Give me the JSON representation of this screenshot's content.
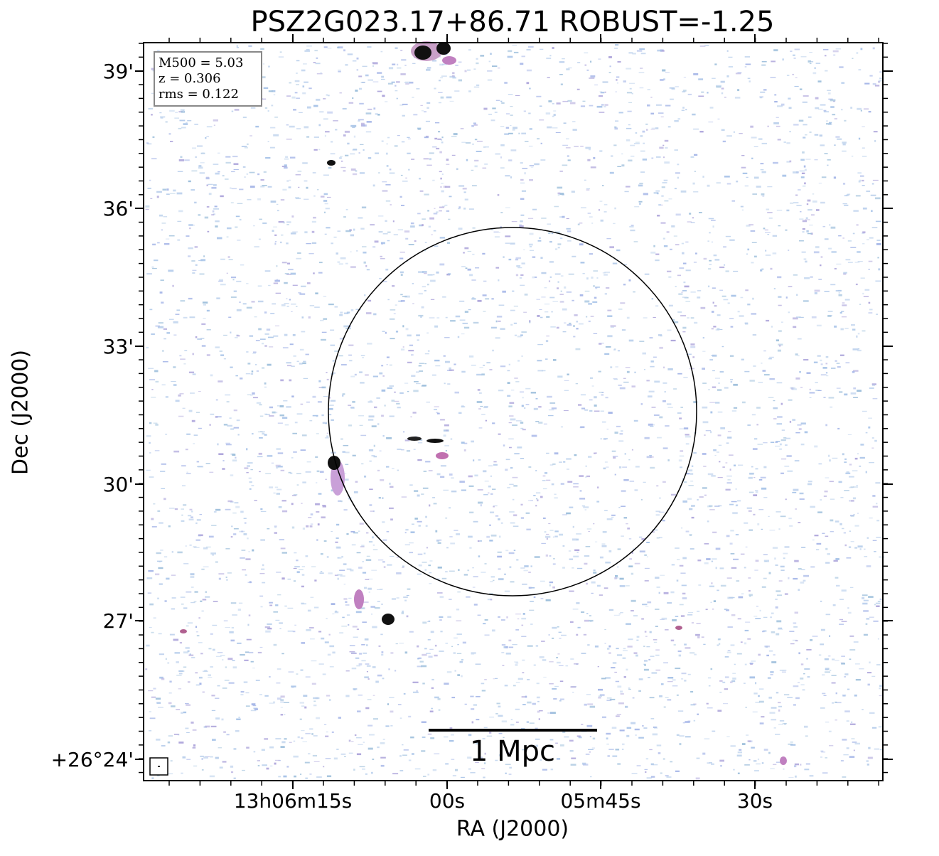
{
  "title": "PSZ2G023.17+86.71 ROBUST=-1.25",
  "x_axis": {
    "label": "RA (J2000)",
    "ticks": [
      "13h06m15s",
      "00s",
      "05m45s",
      "30s"
    ]
  },
  "y_axis": {
    "label": "Dec (J2000)",
    "ticks": [
      "39'",
      "36'",
      "33'",
      "30'",
      "27'",
      "+26°24'"
    ]
  },
  "info_box": [
    "M500 = 5.03",
    "z = 0.306",
    "rms = 0.122"
  ],
  "scale_bar": "1 Mpc"
}
